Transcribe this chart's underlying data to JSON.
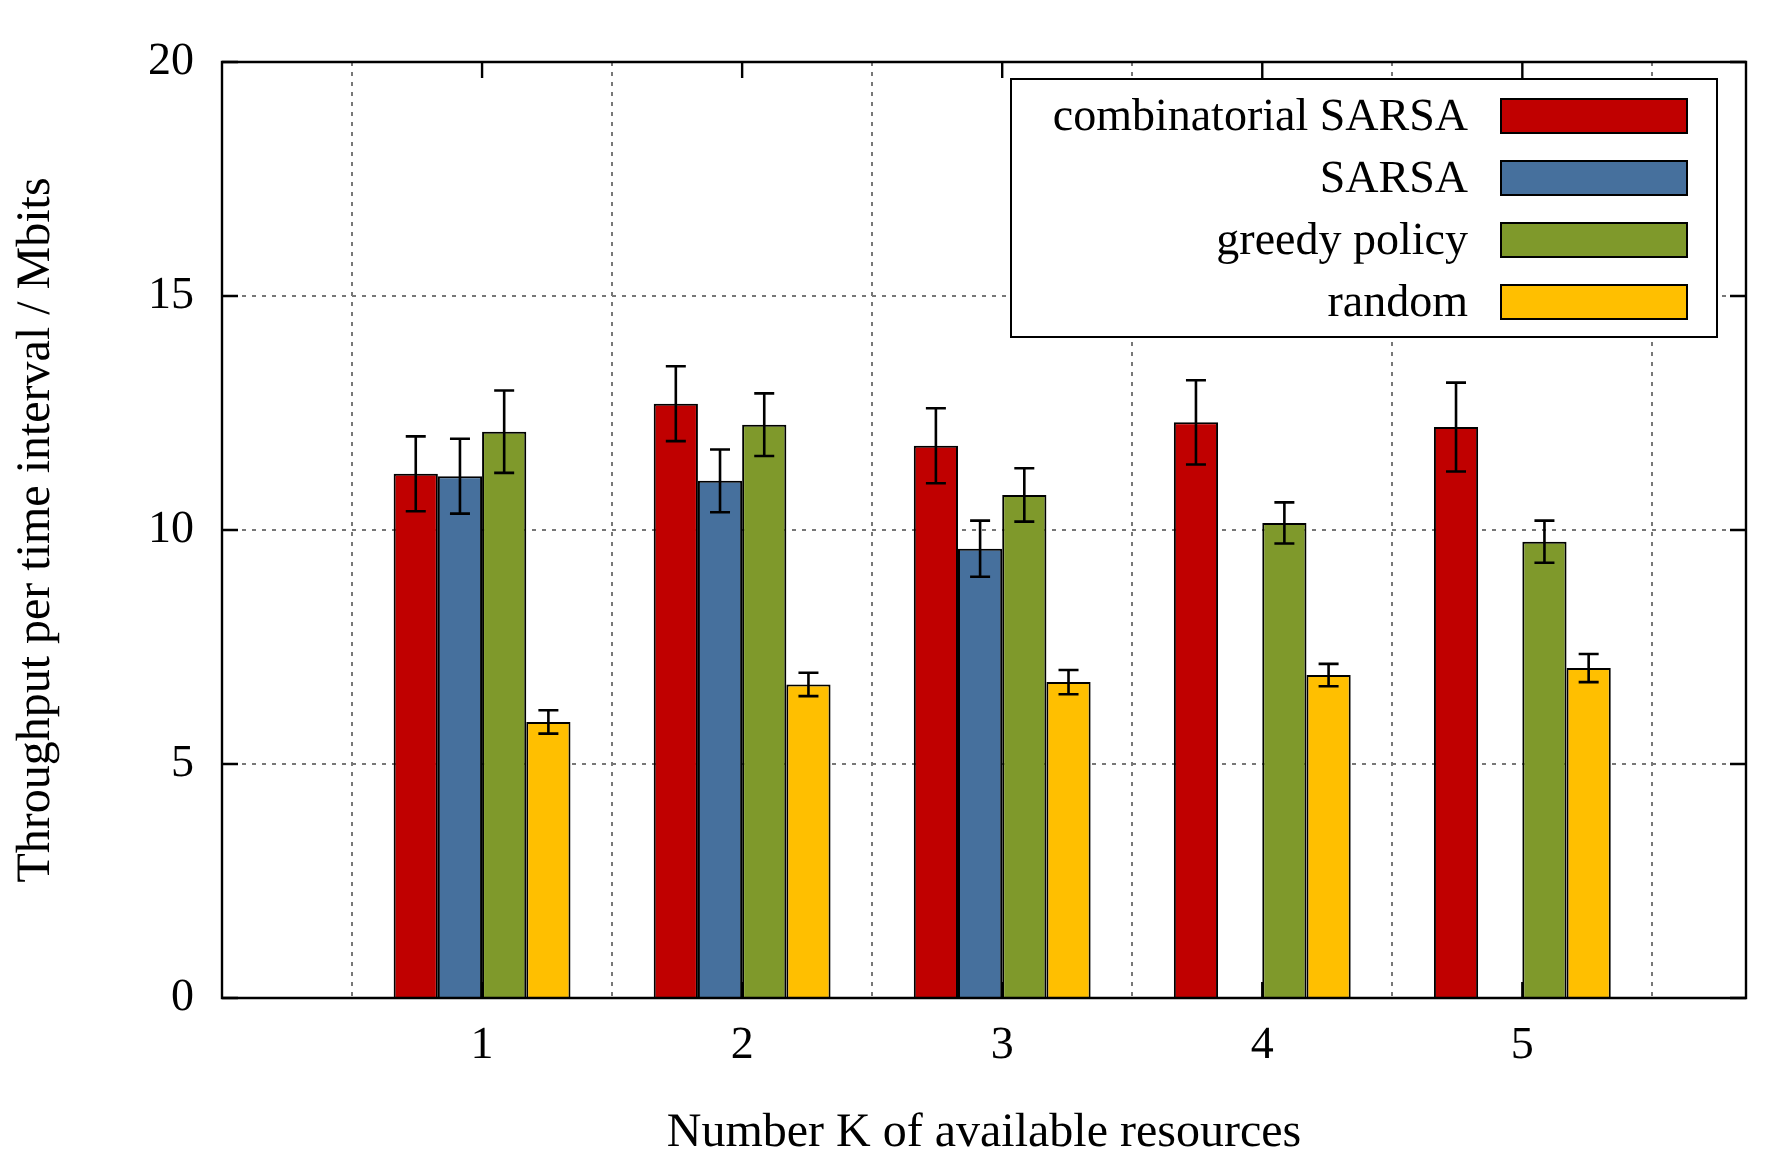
{
  "chart_data": {
    "type": "bar",
    "xlabel": "Number K of available resources",
    "ylabel": "Throughput per time interval / Mbits",
    "x": [
      1,
      2,
      3,
      4,
      5
    ],
    "xlim": [
      0,
      5.86
    ],
    "xticks": [
      1,
      2,
      3,
      4,
      5
    ],
    "ylim": [
      0,
      20
    ],
    "yticks": [
      0,
      5,
      10,
      15,
      20
    ],
    "grid": true,
    "legend": "top right",
    "series": [
      {
        "name": "combinatorial SARSA",
        "color": "#c00000",
        "values": [
          11.2,
          12.7,
          11.8,
          12.3,
          12.2
        ],
        "errors": [
          0.8,
          0.8,
          0.8,
          0.9,
          0.95
        ]
      },
      {
        "name": "SARSA",
        "color": "#46709d",
        "values": [
          11.15,
          11.05,
          9.6,
          null,
          null
        ],
        "errors": [
          0.8,
          0.67,
          0.6,
          null,
          null
        ]
      },
      {
        "name": "greedy policy",
        "color": "#7f992b",
        "values": [
          12.1,
          12.25,
          10.75,
          10.15,
          9.75
        ],
        "errors": [
          0.88,
          0.67,
          0.57,
          0.44,
          0.45
        ]
      },
      {
        "name": "random",
        "color": "#ffbf00",
        "values": [
          5.9,
          6.7,
          6.75,
          6.9,
          7.05
        ],
        "errors": [
          0.25,
          0.25,
          0.26,
          0.24,
          0.3
        ]
      }
    ]
  }
}
